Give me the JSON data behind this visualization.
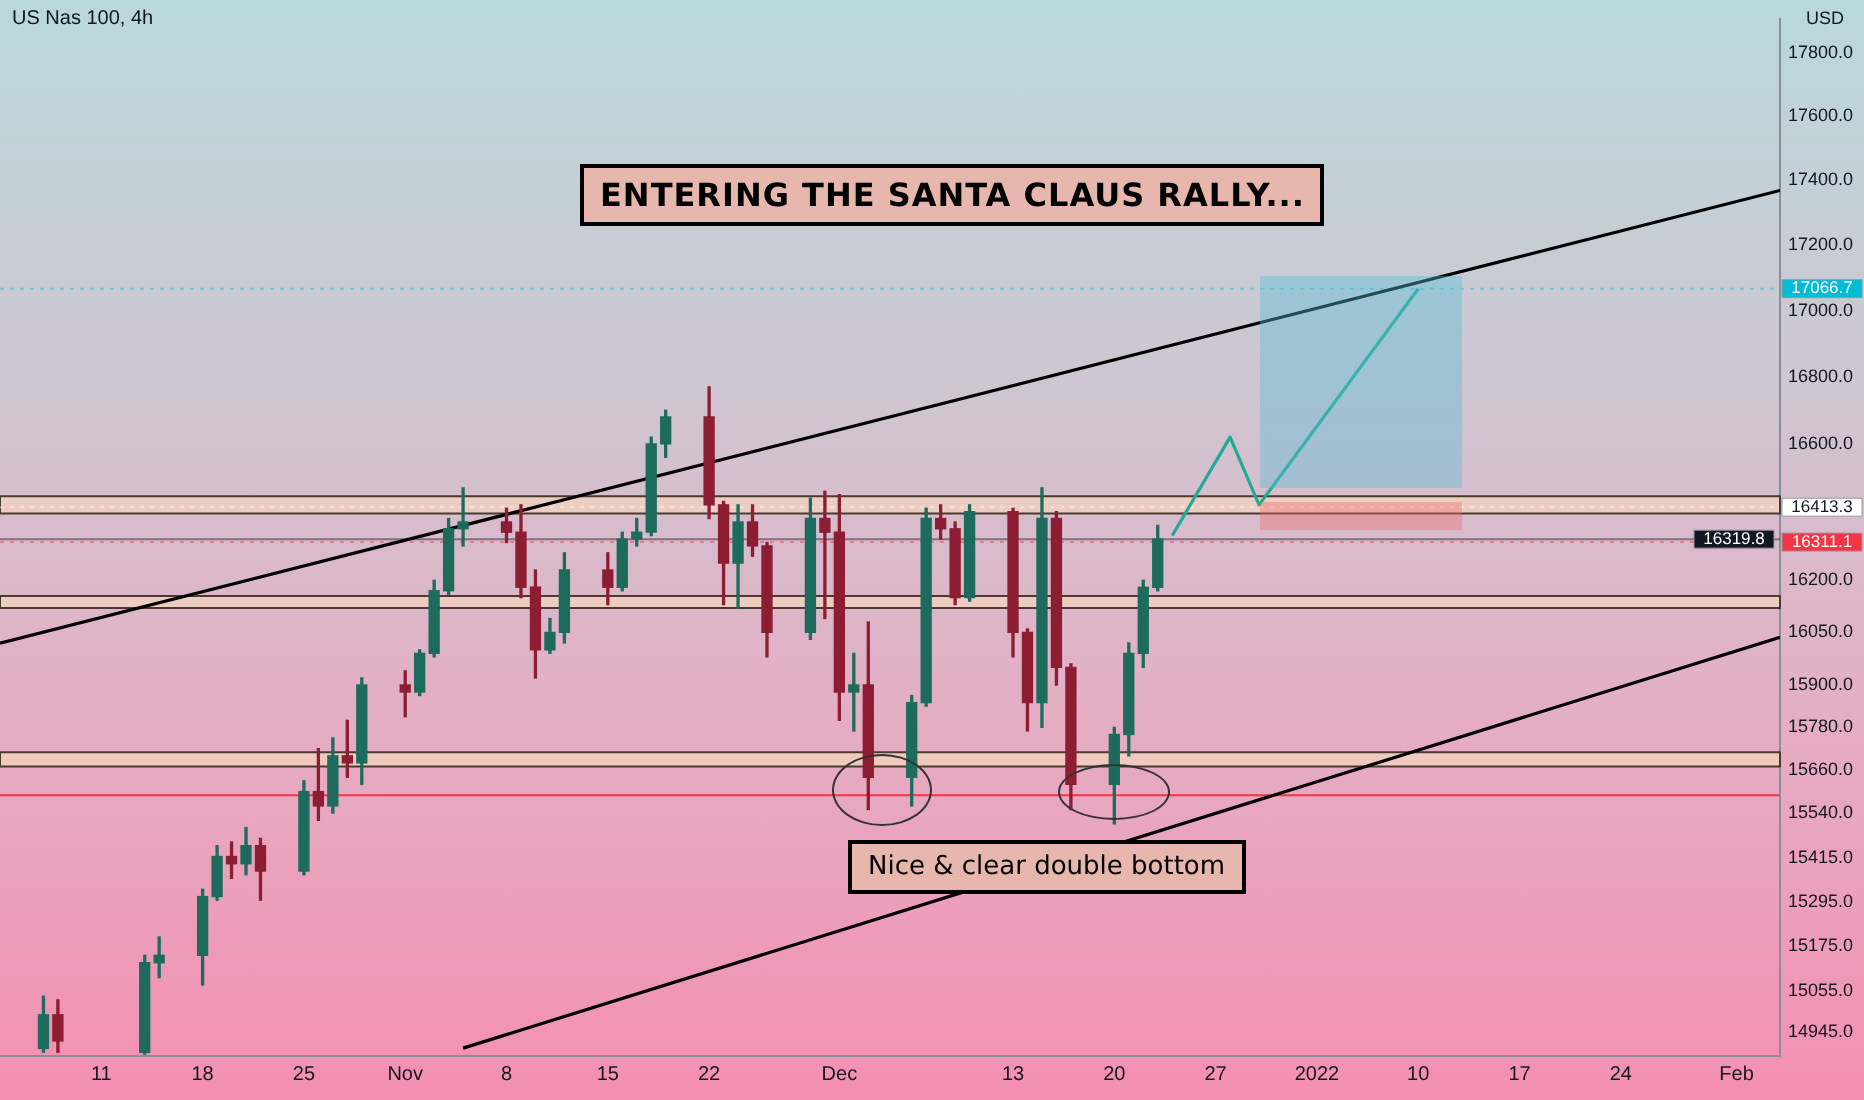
{
  "chart_data": {
    "type": "candlestick",
    "title": "US Nas 100, 4h",
    "ylabel": "USD",
    "log": true,
    "x": [
      "2021-10-07",
      "2021-10-08",
      "2021-10-14",
      "2021-10-15",
      "2021-10-18",
      "2021-10-19",
      "2021-10-20",
      "2021-10-21",
      "2021-10-22",
      "2021-10-25",
      "2021-10-26",
      "2021-10-27",
      "2021-10-28",
      "2021-10-29",
      "2021-11-01",
      "2021-11-02",
      "2021-11-03",
      "2021-11-04",
      "2021-11-05",
      "2021-11-08",
      "2021-11-09",
      "2021-11-10",
      "2021-11-11",
      "2021-11-12",
      "2021-11-15",
      "2021-11-16",
      "2021-11-17",
      "2021-11-18",
      "2021-11-19",
      "2021-11-22",
      "2021-11-23",
      "2021-11-24",
      "2021-11-25",
      "2021-11-26",
      "2021-11-29",
      "2021-11-30",
      "2021-12-01",
      "2021-12-02",
      "2021-12-03",
      "2021-12-06",
      "2021-12-07",
      "2021-12-08",
      "2021-12-09",
      "2021-12-10",
      "2021-12-13",
      "2021-12-14",
      "2021-12-15",
      "2021-12-16",
      "2021-12-17",
      "2021-12-20",
      "2021-12-21",
      "2021-12-22",
      "2021-12-23"
    ],
    "ohlc": [
      [
        14900,
        15040,
        14890,
        14990
      ],
      [
        14990,
        15030,
        14890,
        14920
      ],
      [
        14890,
        15150,
        14885,
        15130
      ],
      [
        15130,
        15200,
        15090,
        15150
      ],
      [
        15150,
        15330,
        15070,
        15310
      ],
      [
        15310,
        15450,
        15300,
        15420
      ],
      [
        15420,
        15460,
        15360,
        15400
      ],
      [
        15400,
        15500,
        15370,
        15450
      ],
      [
        15450,
        15470,
        15300,
        15380
      ],
      [
        15380,
        15630,
        15370,
        15600
      ],
      [
        15600,
        15720,
        15520,
        15560
      ],
      [
        15560,
        15750,
        15540,
        15700
      ],
      [
        15700,
        15800,
        15640,
        15680
      ],
      [
        15680,
        15920,
        15620,
        15900
      ],
      [
        15900,
        15940,
        15810,
        15880
      ],
      [
        15880,
        16000,
        15870,
        15990
      ],
      [
        15990,
        16200,
        15980,
        16170
      ],
      [
        16170,
        16380,
        16160,
        16350
      ],
      [
        16350,
        16470,
        16300,
        16370
      ],
      [
        16370,
        16410,
        16310,
        16340
      ],
      [
        16340,
        16420,
        16150,
        16180
      ],
      [
        16180,
        16230,
        15920,
        16000
      ],
      [
        16000,
        16090,
        15990,
        16050
      ],
      [
        16050,
        16280,
        16020,
        16230
      ],
      [
        16230,
        16280,
        16130,
        16180
      ],
      [
        16180,
        16340,
        16170,
        16320
      ],
      [
        16320,
        16380,
        16300,
        16340
      ],
      [
        16340,
        16620,
        16330,
        16600
      ],
      [
        16600,
        16700,
        16560,
        16680
      ],
      [
        16680,
        16770,
        16380,
        16420
      ],
      [
        16420,
        16430,
        16130,
        16250
      ],
      [
        16250,
        16420,
        16120,
        16370
      ],
      [
        16370,
        16420,
        16270,
        16300
      ],
      [
        16300,
        16310,
        15980,
        16050
      ],
      [
        16050,
        16440,
        16030,
        16380
      ],
      [
        16380,
        16460,
        16090,
        16340
      ],
      [
        16340,
        16450,
        15800,
        15880
      ],
      [
        15880,
        15990,
        15770,
        15900
      ],
      [
        15900,
        16080,
        15550,
        15640
      ],
      [
        15640,
        15870,
        15560,
        15850
      ],
      [
        15850,
        16410,
        15840,
        16380
      ],
      [
        16380,
        16420,
        16320,
        16350
      ],
      [
        16350,
        16370,
        16130,
        16150
      ],
      [
        16150,
        16420,
        16140,
        16400
      ],
      [
        16400,
        16410,
        15980,
        16050
      ],
      [
        16050,
        16060,
        15770,
        15850
      ],
      [
        15850,
        16470,
        15780,
        16380
      ],
      [
        16380,
        16400,
        15900,
        15950
      ],
      [
        15950,
        15960,
        15550,
        15620
      ],
      [
        15620,
        15780,
        15510,
        15760
      ],
      [
        15760,
        16020,
        15700,
        15990
      ],
      [
        15990,
        16200,
        15950,
        16180
      ],
      [
        16180,
        16360,
        16170,
        16320
      ]
    ],
    "series": [
      {
        "type": "line",
        "color": "#000000",
        "x": [
          "2021-10-04",
          "2022-02-04"
        ],
        "values": [
          16019,
          17369
        ]
      },
      {
        "type": "line",
        "color": "#000000",
        "x": [
          "2021-11-05",
          "2022-02-04"
        ],
        "values": [
          14901,
          16036
        ]
      },
      {
        "type": "line",
        "color": "#22ab94",
        "x": [
          "2021-12-24",
          "2021-12-28",
          "2021-12-30",
          "2022-01-10"
        ],
        "values": [
          16330,
          16620,
          16420,
          17066.7
        ]
      }
    ],
    "xlim": [
      "2021-10-04",
      "2022-02-04"
    ],
    "xticks": [
      {
        "value": "2021-10-11",
        "label": "11"
      },
      {
        "value": "2021-10-18",
        "label": "18"
      },
      {
        "value": "2021-10-25",
        "label": "25"
      },
      {
        "value": "2021-11-01",
        "label": "Nov"
      },
      {
        "value": "2021-11-08",
        "label": "8"
      },
      {
        "value": "2021-11-15",
        "label": "15"
      },
      {
        "value": "2021-11-22",
        "label": "22"
      },
      {
        "value": "2021-12-01",
        "label": "Dec"
      },
      {
        "value": "2021-12-13",
        "label": "13"
      },
      {
        "value": "2021-12-20",
        "label": "20"
      },
      {
        "value": "2021-12-27",
        "label": "27"
      },
      {
        "value": "2022-01-03",
        "label": "2022"
      },
      {
        "value": "2022-01-10",
        "label": "10"
      },
      {
        "value": "2022-01-17",
        "label": "17"
      },
      {
        "value": "2022-01-24",
        "label": "24"
      },
      {
        "value": "2022-02-01",
        "label": "Feb"
      }
    ],
    "ylim": [
      14880,
      17910
    ],
    "yticks": [
      {
        "value": 14945,
        "label": "14945.0"
      },
      {
        "value": 15055,
        "label": "15055.0"
      },
      {
        "value": 15175,
        "label": "15175.0"
      },
      {
        "value": 15295,
        "label": "15295.0"
      },
      {
        "value": 15415,
        "label": "15415.0"
      },
      {
        "value": 15540,
        "label": "15540.0"
      },
      {
        "value": 15660,
        "label": "15660.0"
      },
      {
        "value": 15780,
        "label": "15780.0"
      },
      {
        "value": 15900,
        "label": "15900.0"
      },
      {
        "value": 16050,
        "label": "16050.0"
      },
      {
        "value": 16200,
        "label": "16200.0"
      },
      {
        "value": 16600,
        "label": "16600.0"
      },
      {
        "value": 16800,
        "label": "16800.0"
      },
      {
        "value": 17000,
        "label": "17000.0"
      },
      {
        "value": 17200,
        "label": "17200.0"
      },
      {
        "value": 17400,
        "label": "17400.0"
      },
      {
        "value": 17600,
        "label": "17600.0"
      },
      {
        "value": 17800,
        "label": "17800.0"
      }
    ],
    "bands": [
      {
        "axis": "y",
        "from": 16395,
        "to": 16445,
        "color": "#f3d3bd"
      },
      {
        "axis": "y",
        "from": 16120,
        "to": 16155,
        "color": "#f3d3bd"
      },
      {
        "axis": "y",
        "from": 15670,
        "to": 15710,
        "color": "#f3d3bd"
      }
    ],
    "ref_lines": [
      {
        "axis": "y",
        "value": 16319.8,
        "label": "16319.8",
        "color": "#131722"
      },
      {
        "axis": "y",
        "value": 17066.7,
        "label": "17066.7",
        "color": "#00bcd4",
        "line_style": "dotted"
      },
      {
        "axis": "y",
        "value": 16413.3,
        "label": "16413.3",
        "color": "#ffffff",
        "line_style": "dotted"
      },
      {
        "axis": "y",
        "value": 16311.1,
        "label": "16311.1",
        "color": "#f23645",
        "line_style": "dotted"
      },
      {
        "axis": "y",
        "value": 15590,
        "color": "#f23645"
      }
    ],
    "annotations": [
      "ENTERING THE SANTA CLAUS RALLY...",
      "Nice & clear double bottom"
    ]
  }
}
